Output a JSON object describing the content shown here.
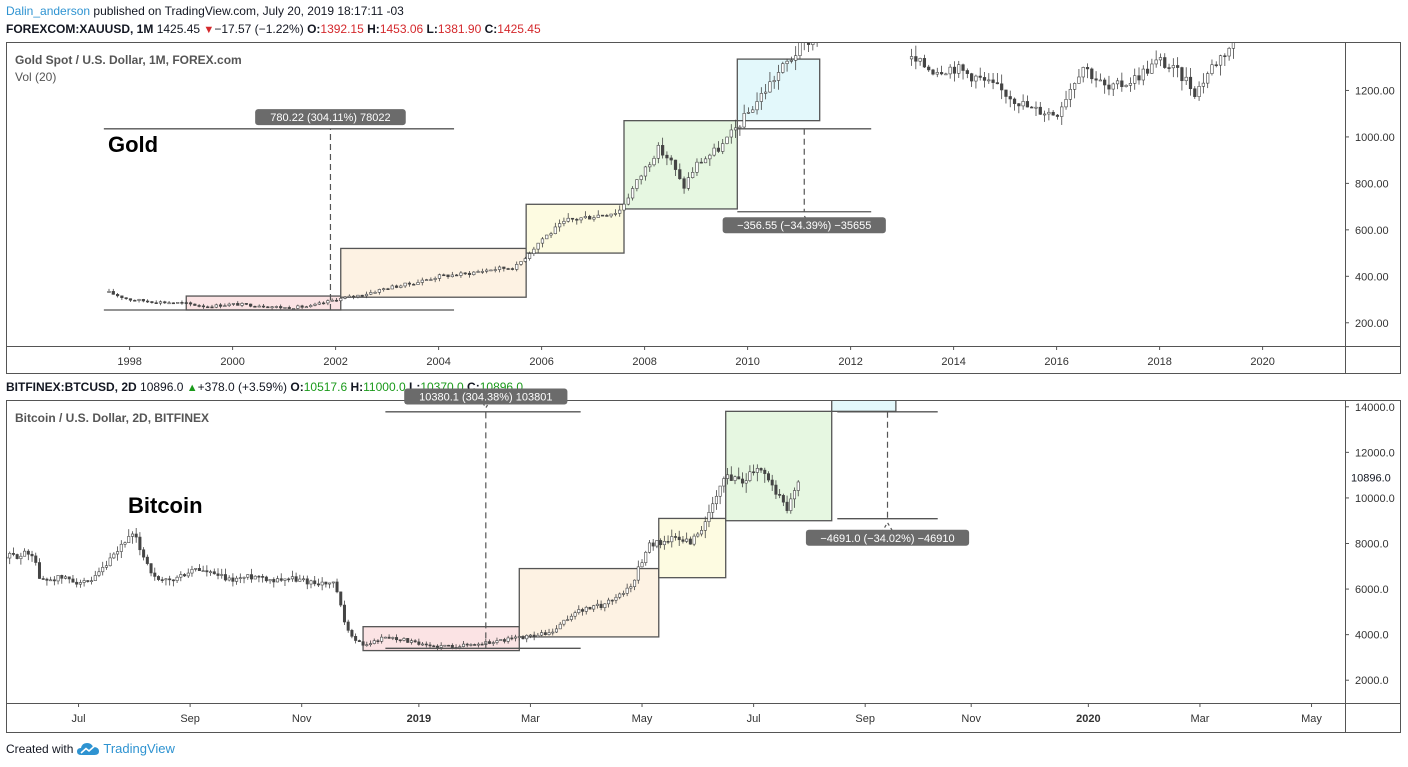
{
  "header": {
    "author": "Dalin_anderson",
    "rest": " published on TradingView.com, July 20, 2019 18:17:11 -03"
  },
  "footer": {
    "prefix": "Created with",
    "brand": "TradingView"
  },
  "colors": {
    "red": "#d4282c",
    "green": "#1b9a1b",
    "brand": "#2e93d1",
    "box_pink": "#fbe3e4",
    "box_orange": "#fdf2e3",
    "box_yellow": "#fdfbe1",
    "box_green": "#e6f7e1",
    "box_cyan": "#e3f8fb",
    "box_border": "#555555",
    "label_bg": "#6b6b6b",
    "candle": "#444444"
  },
  "gold": {
    "symbol": "FOREXCOM:XAUUSD, 1M",
    "price": "1425.45",
    "change": "−17.57 (−1.22%)",
    "change_dir": "down",
    "ohlc": [
      {
        "k": "O:",
        "v": "1392.15"
      },
      {
        "k": "H:",
        "v": "1453.06"
      },
      {
        "k": "L:",
        "v": "1381.90"
      },
      {
        "k": "C:",
        "v": "1425.45"
      }
    ]
  },
  "btc": {
    "symbol": "BITFINEX:BTCUSD, 2D",
    "price": "10896.0",
    "change": "+378.0 (+3.59%)",
    "change_dir": "up",
    "ohlc": [
      {
        "k": "O:",
        "v": "10517.6"
      },
      {
        "k": "H:",
        "v": "11000.0"
      },
      {
        "k": "L:",
        "v": "10370.0"
      },
      {
        "k": "C:",
        "v": "10896.0"
      }
    ]
  },
  "chart_data": [
    {
      "type": "line",
      "title": "Gold Spot / U.S. Dollar, 1M, FOREX.com",
      "subtitle": "Vol (20)",
      "annotation": "Gold",
      "xlim": [
        1995.6,
        2021.6
      ],
      "ylim": [
        100,
        1400
      ],
      "x_ticks": [
        1998,
        2000,
        2002,
        2004,
        2006,
        2008,
        2010,
        2012,
        2014,
        2016,
        2018,
        2020
      ],
      "y_ticks": [
        200,
        400,
        600,
        800,
        1000,
        1200
      ],
      "y_tick_labels": [
        "200.00",
        "400.00",
        "600.00",
        "800.00",
        "1000.00",
        "1200.00"
      ],
      "series": [
        {
          "x": [
            1997.6,
            1998.0,
            1998.5,
            1999.0,
            1999.5,
            2000.0,
            2000.5,
            2001.0,
            2001.5,
            2002.0,
            2002.5,
            2003.0,
            2003.5,
            2004.0,
            2004.5,
            2005.0,
            2005.5,
            2006.0,
            2006.5,
            2007.0,
            2007.5,
            2008.0,
            2008.25,
            2008.5,
            2008.75,
            2009.0,
            2009.5,
            2010.0,
            2010.5,
            2011.0,
            2011.3,
            2013.2,
            2013.6,
            2014.0,
            2014.5,
            2015.0,
            2015.5,
            2016.0,
            2016.5,
            2017.0,
            2017.5,
            2018.0,
            2018.5,
            2018.7,
            2019.0,
            2019.5
          ],
          "y": [
            330,
            300,
            290,
            285,
            270,
            280,
            275,
            265,
            270,
            300,
            320,
            350,
            370,
            400,
            410,
            430,
            440,
            560,
            640,
            660,
            680,
            860,
            950,
            900,
            780,
            880,
            960,
            1100,
            1250,
            1380,
            1440,
            1330,
            1290,
            1300,
            1250,
            1190,
            1120,
            1100,
            1310,
            1200,
            1250,
            1330,
            1250,
            1190,
            1300,
            1425
          ]
        }
      ],
      "stages": [
        {
          "x0": 1999.1,
          "x1": 2002.1,
          "y0": 255,
          "y1": 315,
          "color": "box_pink"
        },
        {
          "x0": 2002.1,
          "x1": 2005.7,
          "y0": 310,
          "y1": 520,
          "color": "box_orange"
        },
        {
          "x0": 2005.7,
          "x1": 2007.6,
          "y0": 500,
          "y1": 710,
          "color": "box_yellow"
        },
        {
          "x0": 2007.6,
          "x1": 2009.8,
          "y0": 690,
          "y1": 1070,
          "color": "box_green"
        },
        {
          "x0": 2009.8,
          "x1": 2011.4,
          "y0": 1070,
          "y1": 1335,
          "color": "box_cyan"
        }
      ],
      "measures": [
        {
          "label": "780.22 (304.11%) 78022",
          "x": 2001.9,
          "x0": 1997.5,
          "x1": 2004.3,
          "from": 255,
          "to": 1035,
          "label_y": 1085
        },
        {
          "label": "−356.55 (−34.39%) −35655",
          "x": 2011.1,
          "x0": 2009.8,
          "x1": 2012.4,
          "from": 1035,
          "to": 678,
          "label_y": 620
        }
      ]
    },
    {
      "type": "line",
      "title": "Bitcoin / U.S. Dollar, 2D, BITFINEX",
      "annotation": "Bitcoin",
      "xlim": [
        0,
        24
      ],
      "ylim": [
        1000,
        15000
      ],
      "x_ticks": [
        1.3,
        3.3,
        5.3,
        7.4,
        9.4,
        11.4,
        13.4,
        15.4,
        17.3,
        19.4,
        21.4,
        23.4
      ],
      "x_tick_labels": [
        "Jul",
        "Sep",
        "Nov",
        "2019",
        "Mar",
        "May",
        "Jul",
        "Sep",
        "Nov",
        "2020",
        "Mar",
        "May"
      ],
      "x_tick_bold": [
        false,
        false,
        false,
        true,
        false,
        false,
        false,
        false,
        false,
        true,
        false,
        false
      ],
      "y_ticks": [
        2000,
        4000,
        6000,
        8000,
        10000,
        12000,
        14000
      ],
      "y_tick_labels": [
        "2000.0",
        "4000.0",
        "6000.0",
        "8000.0",
        "10000.0",
        "12000.0",
        "14000.0"
      ],
      "last_price": {
        "value": 10896,
        "label": "10896.0"
      },
      "series": [
        {
          "x": [
            0.0,
            0.5,
            0.6,
            1.0,
            1.5,
            2.0,
            2.1,
            2.3,
            2.7,
            3.0,
            3.4,
            4.0,
            4.5,
            4.8,
            5.0,
            5.5,
            5.9,
            6.1,
            6.4,
            6.8,
            7.1,
            7.5,
            8.0,
            8.5,
            9.0,
            9.3,
            9.8,
            10.2,
            10.7,
            11.2,
            11.5,
            11.9,
            12.3,
            12.6,
            12.9,
            13.2,
            13.5,
            13.8,
            14.0,
            14.2
          ],
          "y": [
            7400,
            7600,
            6400,
            6500,
            6200,
            7600,
            8100,
            8300,
            6300,
            6400,
            6900,
            6400,
            6600,
            6400,
            6500,
            6300,
            6200,
            4200,
            3500,
            3900,
            3800,
            3500,
            3500,
            3600,
            3800,
            3900,
            4100,
            5000,
            5300,
            6100,
            7900,
            8200,
            8100,
            9200,
            11000,
            10800,
            11500,
            10300,
            9400,
            10896
          ]
        }
      ],
      "stages": [
        {
          "x0": 6.4,
          "x1": 9.2,
          "y0": 3300,
          "y1": 4350,
          "color": "box_pink"
        },
        {
          "x0": 9.2,
          "x1": 11.7,
          "y0": 3900,
          "y1": 6900,
          "color": "box_orange"
        },
        {
          "x0": 11.7,
          "x1": 12.9,
          "y0": 6500,
          "y1": 9100,
          "color": "box_yellow"
        },
        {
          "x0": 12.9,
          "x1": 14.8,
          "y0": 9000,
          "y1": 13800,
          "color": "box_green"
        },
        {
          "x0": 14.8,
          "x1": 15.95,
          "y0": 13800,
          "y1": 15800,
          "color": "box_cyan"
        }
      ],
      "measures": [
        {
          "label": "10380.1 (304.38%) 103801",
          "x": 8.6,
          "x0": 6.8,
          "x1": 10.3,
          "from": 3400,
          "to": 13780,
          "label_y": 14450
        },
        {
          "label": "−4691.0 (−34.02%) −46910",
          "x": 15.8,
          "x0": 14.9,
          "x1": 16.7,
          "from": 13780,
          "to": 9090,
          "label_y": 8250
        }
      ]
    }
  ]
}
